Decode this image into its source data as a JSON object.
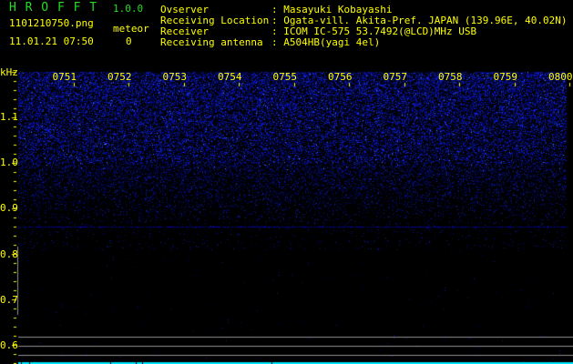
{
  "app": {
    "name": "H R O F F T",
    "version": "1.0.0"
  },
  "file": {
    "name": "1101210750.png",
    "datetime": "11.01.21 07:50"
  },
  "meteor": {
    "label": "meteor",
    "count": "0"
  },
  "info": [
    {
      "label": "Ovserver",
      "value": ": Masayuki Kobayashi"
    },
    {
      "label": "Receiving Location",
      "value": ": Ogata-vill. Akita-Pref. JAPAN (139.96E, 40.02N)"
    },
    {
      "label": "Receiver",
      "value": ": ICOM IC-575 53.7492(@LCD)MHz USB"
    },
    {
      "label": "Receiving antenna",
      "value": ": A504HB(yagi 4el)"
    }
  ],
  "axis": {
    "unit": "kHz",
    "freq_labels": [
      "1.1",
      "1.0",
      "0.9",
      "0.8",
      "0.7",
      "0.6"
    ],
    "time_labels": [
      "0751",
      "0752",
      "0753",
      "0754",
      "0755",
      "0756",
      "0757",
      "0758",
      "0759",
      "0800"
    ]
  },
  "colors": {
    "text": "#ffff00",
    "logo": "#22dd22",
    "signal": "#2233ff",
    "baseline": "#00e5ff",
    "grid": "#909090"
  }
}
